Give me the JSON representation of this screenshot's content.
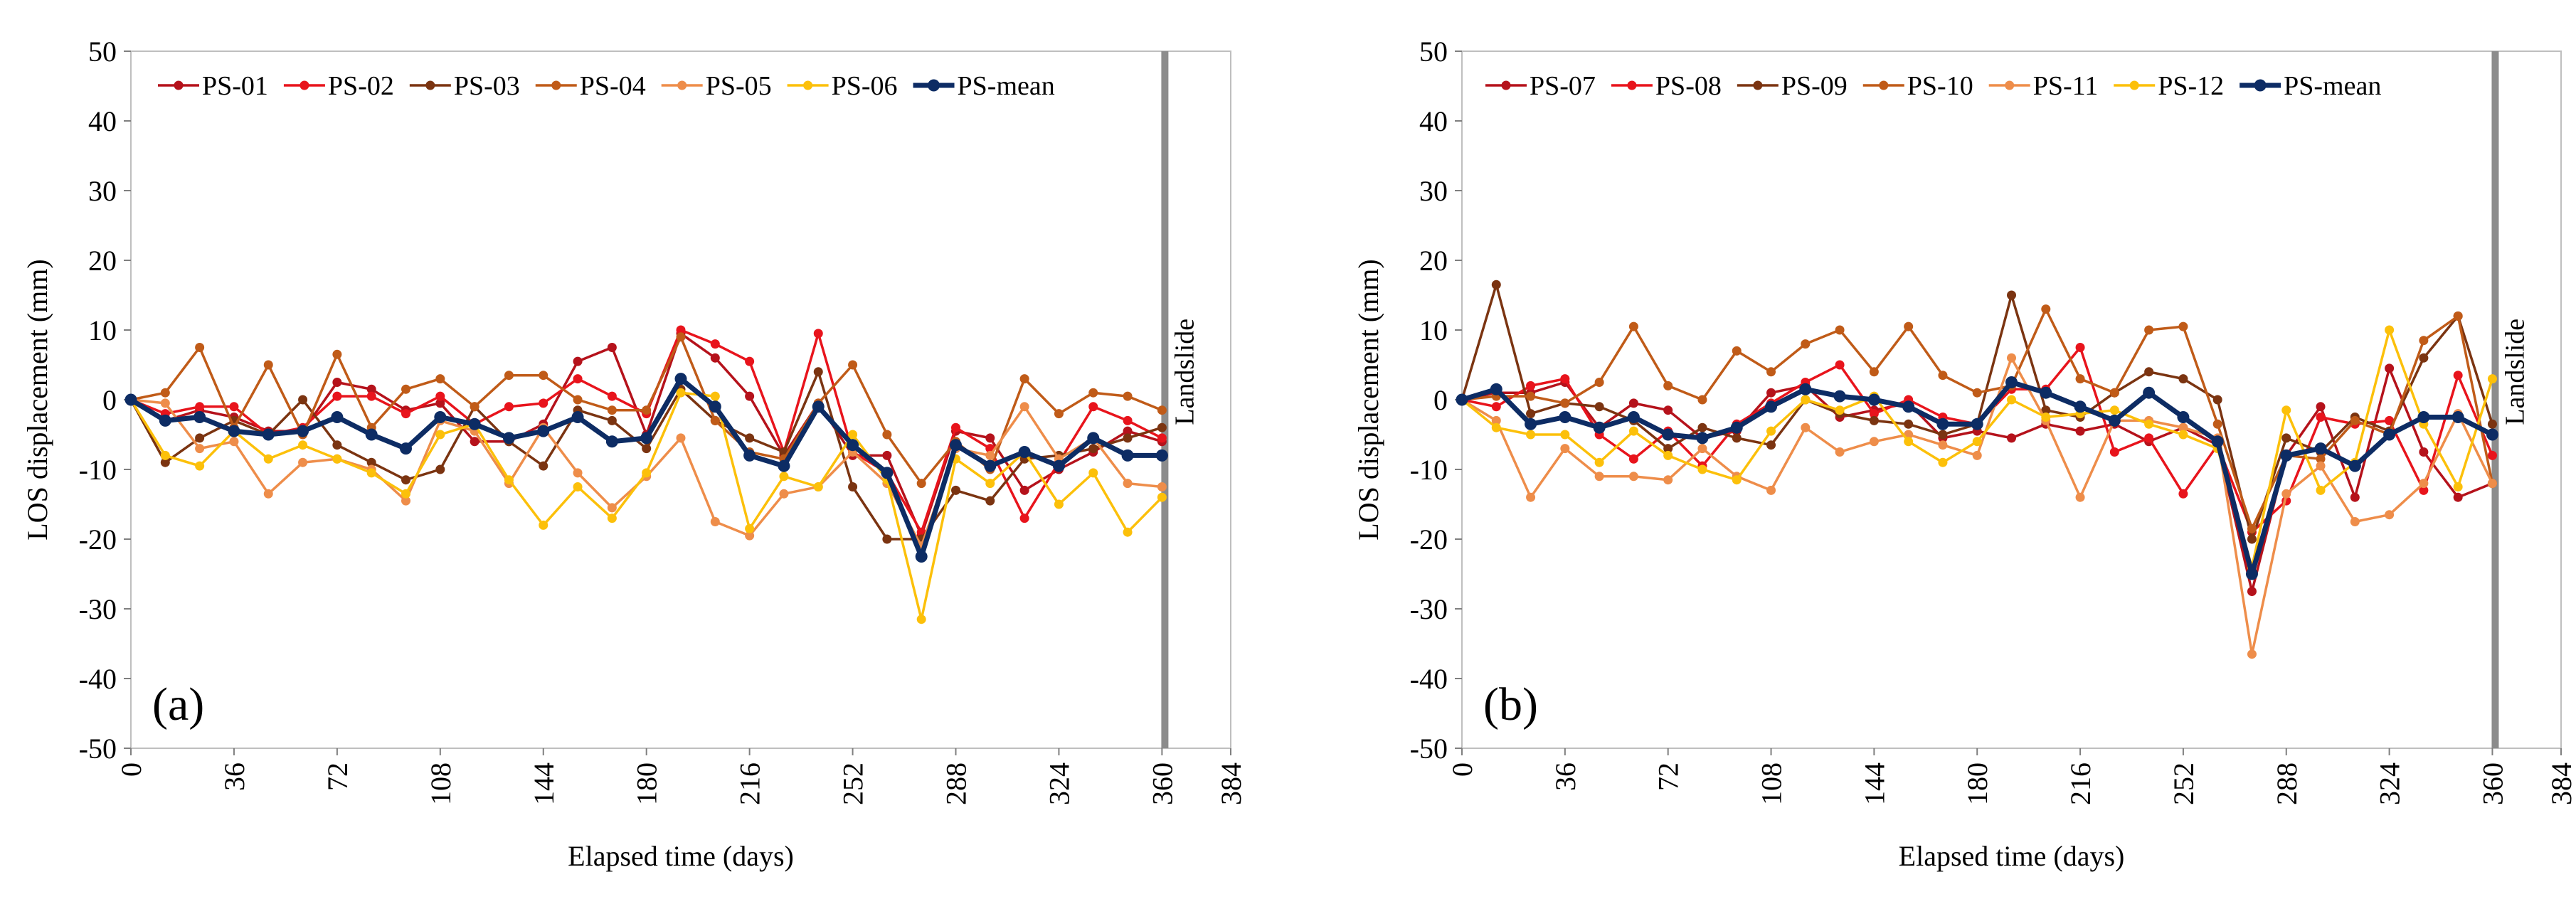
{
  "figure": {
    "panel_count": 2
  },
  "chart_data": [
    {
      "type": "line",
      "panel_label": "(a)",
      "xlabel": "Elapsed time (days)",
      "ylabel": "LOS displacement (mm)",
      "xlim": [
        0,
        384
      ],
      "ylim": [
        -50,
        50
      ],
      "xticks": [
        0,
        36,
        72,
        108,
        144,
        180,
        216,
        252,
        288,
        324,
        360,
        384
      ],
      "yticks": [
        -50,
        -40,
        -30,
        -20,
        -10,
        0,
        10,
        20,
        30,
        40,
        50
      ],
      "grid": false,
      "legend_position": "top",
      "event_line": {
        "x": 361,
        "label": "Landslide",
        "color": "#8c8c8c"
      },
      "x": [
        0,
        12,
        24,
        36,
        48,
        60,
        72,
        84,
        96,
        108,
        120,
        132,
        144,
        156,
        168,
        180,
        192,
        204,
        216,
        228,
        240,
        252,
        264,
        276,
        288,
        300,
        312,
        324,
        336,
        348,
        360
      ],
      "series": [
        {
          "name": "PS-01",
          "color": "#b5121b",
          "values": [
            0,
            -3,
            -1.5,
            -2.5,
            -4.5,
            -4.5,
            2.5,
            1.5,
            -1.5,
            -0.5,
            -6,
            -6,
            -3.5,
            5.5,
            7.5,
            -5,
            9.5,
            6,
            0.5,
            -8,
            -0.5,
            -8,
            -8,
            -19.5,
            -4.5,
            -5.5,
            -13,
            -10,
            -7.5,
            -4.5,
            -6
          ]
        },
        {
          "name": "PS-02",
          "color": "#e8141c",
          "values": [
            0,
            -2,
            -1,
            -1,
            -5,
            -4,
            0.5,
            0.5,
            -2,
            0.5,
            -3.5,
            -1,
            -0.5,
            3,
            0.5,
            -2,
            10,
            8,
            5.5,
            -7.5,
            9.5,
            -7.5,
            -10.5,
            -19,
            -4,
            -7,
            -17,
            -9,
            -1,
            -3,
            -5.5
          ]
        },
        {
          "name": "PS-03",
          "color": "#7b3411",
          "values": [
            0,
            -9,
            -5.5,
            -3,
            -5,
            0,
            -6.5,
            -9,
            -11.5,
            -10,
            -1,
            -6,
            -9.5,
            -1.5,
            -3,
            -7,
            1.5,
            -3,
            -5.5,
            -7.5,
            4,
            -12.5,
            -20,
            -20,
            -13,
            -14.5,
            -8.5,
            -8,
            -7,
            -5.5,
            -4
          ]
        },
        {
          "name": "PS-04",
          "color": "#c05b18",
          "values": [
            0,
            1,
            7.5,
            -4,
            5,
            -5,
            6.5,
            -4,
            1.5,
            3,
            -1,
            3.5,
            3.5,
            0,
            -1.5,
            -1.5,
            9,
            -3,
            -7.5,
            -8.5,
            -0.5,
            5,
            -5,
            -12,
            -6,
            -10,
            3,
            -2,
            1,
            0.5,
            -1.5
          ]
        },
        {
          "name": "PS-05",
          "color": "#ee8d4a",
          "values": [
            0,
            -0.5,
            -7,
            -6,
            -13.5,
            -9,
            -8.5,
            -10,
            -14.5,
            -3,
            -4.5,
            -12,
            -4,
            -10.5,
            -15.5,
            -11,
            -5.5,
            -17.5,
            -19.5,
            -13.5,
            -12.5,
            -7.5,
            -12,
            -21,
            -7,
            -8,
            -1,
            -8.5,
            -5.5,
            -12,
            -12.5
          ]
        },
        {
          "name": "PS-06",
          "color": "#fcc00a",
          "values": [
            0,
            -8,
            -9.5,
            -4.5,
            -8.5,
            -6.5,
            -8.5,
            -10.5,
            -13.5,
            -5,
            -3.5,
            -11.5,
            -18,
            -12.5,
            -17,
            -10.5,
            1,
            0.5,
            -18.5,
            -11,
            -12.5,
            -5,
            -11.5,
            -31.5,
            -8.5,
            -12,
            -7.5,
            -15,
            -10.5,
            -19,
            -14
          ]
        },
        {
          "name": "PS-mean",
          "color": "#0d2c64",
          "values": [
            0,
            -3,
            -2.5,
            -4.5,
            -5,
            -4.5,
            -2.5,
            -5,
            -7,
            -2.5,
            -3.5,
            -5.5,
            -4.5,
            -2.5,
            -6,
            -5.5,
            3,
            -1,
            -8,
            -9.5,
            -1,
            -6.5,
            -10.5,
            -22.5,
            -6.5,
            -9.5,
            -7.5,
            -9.5,
            -5.5,
            -8,
            -8
          ]
        }
      ]
    },
    {
      "type": "line",
      "panel_label": "(b)",
      "xlabel": "Elapsed time (days)",
      "ylabel": "LOS displacement (mm)",
      "xlim": [
        0,
        384
      ],
      "ylim": [
        -50,
        50
      ],
      "xticks": [
        0,
        36,
        72,
        108,
        144,
        180,
        216,
        252,
        288,
        324,
        360,
        384
      ],
      "yticks": [
        -50,
        -40,
        -30,
        -20,
        -10,
        0,
        10,
        20,
        30,
        40,
        50
      ],
      "grid": false,
      "legend_position": "top",
      "event_line": {
        "x": 361,
        "label": "Landslide",
        "color": "#8c8c8c"
      },
      "x": [
        0,
        12,
        24,
        36,
        48,
        60,
        72,
        84,
        96,
        108,
        120,
        132,
        144,
        156,
        168,
        180,
        192,
        204,
        216,
        228,
        240,
        252,
        264,
        276,
        288,
        300,
        312,
        324,
        336,
        348,
        360
      ],
      "series": [
        {
          "name": "PS-07",
          "color": "#b5121b",
          "values": [
            0,
            1,
            1,
            2.5,
            -4,
            -0.5,
            -1.5,
            -5.5,
            -4.5,
            1,
            2,
            -2.5,
            -1.5,
            -0.5,
            -5.5,
            -4.5,
            -5.5,
            -3.5,
            -4.5,
            -3.5,
            -6,
            -4,
            -6.5,
            -27.5,
            -8,
            -1,
            -14,
            4.5,
            -7.5,
            -14,
            -12
          ]
        },
        {
          "name": "PS-08",
          "color": "#e8141c",
          "values": [
            0,
            -1,
            2,
            3,
            -5,
            -8.5,
            -4.5,
            -9.5,
            -3.5,
            -0.5,
            2.5,
            5,
            -2,
            0,
            -2.5,
            -3.5,
            1.5,
            1.5,
            7.5,
            -7.5,
            -5.5,
            -13.5,
            -6.5,
            -19,
            -14.5,
            -2.5,
            -3.5,
            -3,
            -13,
            3.5,
            -8
          ]
        },
        {
          "name": "PS-09",
          "color": "#7b3411",
          "values": [
            0,
            16.5,
            -2,
            -0.5,
            -1,
            -3,
            -7,
            -4,
            -5.5,
            -6.5,
            0,
            -2,
            -3,
            -3.5,
            -5,
            -3.5,
            15,
            -1.5,
            -2.5,
            1,
            4,
            3,
            0,
            -20,
            -5.5,
            -7.5,
            -2.5,
            -4.5,
            6,
            12,
            -3.5
          ]
        },
        {
          "name": "PS-10",
          "color": "#c05b18",
          "values": [
            0,
            0.5,
            0.5,
            -0.5,
            2.5,
            10.5,
            2,
            0,
            7,
            4,
            8,
            10,
            4,
            10.5,
            3.5,
            1,
            2,
            13,
            3,
            1,
            10,
            10.5,
            -3.5,
            -18.5,
            -8,
            -8.5,
            -3,
            -5,
            8.5,
            12,
            -12
          ]
        },
        {
          "name": "PS-11",
          "color": "#ee8d4a",
          "values": [
            0,
            -3,
            -14,
            -7,
            -11,
            -11,
            -11.5,
            -7,
            -11,
            -13,
            -4,
            -7.5,
            -6,
            -5,
            -6.5,
            -8,
            6,
            -3,
            -14,
            -3,
            -3,
            -4,
            -5.5,
            -36.5,
            -13.5,
            -9.5,
            -17.5,
            -16.5,
            -12,
            -2,
            -12
          ]
        },
        {
          "name": "PS-12",
          "color": "#fcc00a",
          "values": [
            0,
            -4,
            -5,
            -5,
            -9,
            -4.5,
            -8,
            -10,
            -11.5,
            -4.5,
            0,
            -1.5,
            0.5,
            -6,
            -9,
            -6,
            0,
            -2.5,
            -2,
            -1.5,
            -3.5,
            -5,
            -7,
            -24,
            -1.5,
            -13,
            -9,
            10,
            -3.5,
            -12.5,
            3
          ]
        },
        {
          "name": "PS-mean",
          "color": "#0d2c64",
          "values": [
            0,
            1.5,
            -3.5,
            -2.5,
            -4,
            -2.5,
            -5,
            -5.5,
            -4,
            -1,
            1.5,
            0.5,
            0,
            -1,
            -3.5,
            -3.5,
            2.5,
            1,
            -1,
            -3,
            1,
            -2.5,
            -6,
            -25,
            -8,
            -7,
            -9.5,
            -5,
            -2.5,
            -2.5,
            -5
          ]
        }
      ]
    }
  ]
}
